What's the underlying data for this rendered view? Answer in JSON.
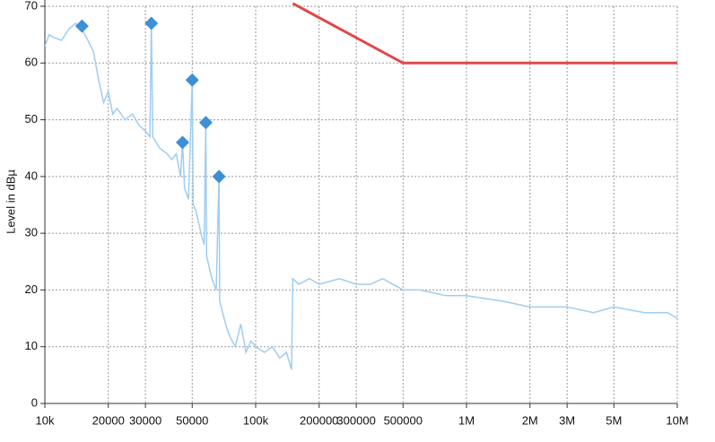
{
  "chart_data": {
    "type": "line",
    "ylabel": "Level in dBµ",
    "xscale": "log",
    "xlim": [
      10000,
      10000000
    ],
    "ylim": [
      0,
      70
    ],
    "xticks": [
      {
        "value": 10000,
        "label": "10k"
      },
      20000,
      30000,
      50000,
      {
        "value": 100000,
        "label": "100k"
      },
      200000,
      300000,
      500000,
      {
        "value": 1000000,
        "label": "1M"
      },
      {
        "value": 2000000,
        "label": "2M"
      },
      {
        "value": 3000000,
        "label": "3M"
      },
      {
        "value": 5000000,
        "label": "5M"
      },
      {
        "value": 10000000,
        "label": "10M"
      }
    ],
    "yticks": [
      0,
      10,
      20,
      30,
      40,
      50,
      60,
      70
    ],
    "grid": true,
    "series": [
      {
        "color": "#9fcdf2",
        "x": [
          10000,
          10500,
          11000,
          12000,
          13000,
          14000,
          15000,
          16000,
          17000,
          18000,
          19000,
          20000,
          21000,
          22000,
          24000,
          26000,
          28000,
          30000,
          31500,
          32000,
          32500,
          35000,
          38000,
          40000,
          42000,
          44000,
          45000,
          46000,
          48000,
          50000,
          50500,
          52000,
          55000,
          57000,
          58000,
          58500,
          62000,
          65000,
          67000,
          67500,
          72000,
          75000,
          80000,
          85000,
          90000,
          95000,
          100000,
          110000,
          120000,
          130000,
          140000,
          148000,
          150000,
          160000,
          180000,
          200000,
          250000,
          300000,
          350000,
          400000,
          500000,
          600000,
          800000,
          1000000,
          1500000,
          2000000,
          3000000,
          4000000,
          5000000,
          7000000,
          9000000,
          10000000
        ],
        "values": [
          63,
          65,
          64.5,
          64,
          66,
          67,
          66,
          64,
          62,
          57,
          53,
          55,
          51,
          52,
          50,
          51,
          49,
          48,
          47,
          67,
          47,
          45,
          44,
          43,
          44,
          40,
          46,
          38,
          36,
          57,
          35,
          34,
          30,
          28,
          49.5,
          26,
          22,
          20,
          40,
          18,
          14,
          12,
          10,
          14,
          9,
          11,
          10,
          9,
          10,
          8,
          9,
          6,
          22,
          21,
          22,
          21,
          22,
          21,
          21,
          22,
          20,
          20,
          19,
          19,
          18,
          17,
          17,
          16,
          17,
          16,
          16,
          15
        ]
      },
      {
        "color": "#e04848",
        "x": [
          150000,
          500000,
          10000000
        ],
        "values": [
          70.5,
          60,
          60
        ]
      }
    ],
    "peaks": {
      "color": "#3d8fd6",
      "x": [
        15000,
        32000,
        45000,
        50000,
        58000,
        67000
      ],
      "values": [
        66.5,
        67,
        46,
        57,
        49.5,
        40
      ]
    }
  }
}
